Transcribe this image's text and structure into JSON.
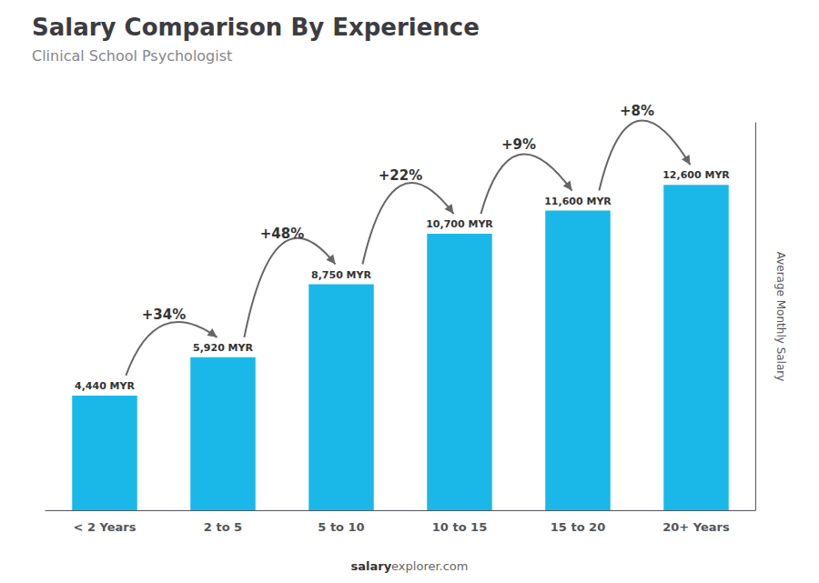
{
  "chart_data": {
    "type": "bar",
    "title": "Salary Comparison By Experience",
    "subtitle": "Clinical School Psychologist",
    "categories": [
      "< 2 Years",
      "2 to 5",
      "5 to 10",
      "10 to 15",
      "15 to 20",
      "20+ Years"
    ],
    "values": [
      4440,
      5920,
      8750,
      10700,
      11600,
      12600
    ],
    "value_labels": [
      "4,440 MYR",
      "5,920 MYR",
      "8,750 MYR",
      "10,700 MYR",
      "11,600 MYR",
      "12,600 MYR"
    ],
    "color": "#1ab8e8",
    "ylabel": "Average Monthly Salary",
    "ylim": [
      0,
      15000
    ],
    "annotations": [
      "+34%",
      "+48%",
      "+22%",
      "+9%",
      "+8%"
    ],
    "footer": [
      "salary",
      "explorer.com"
    ],
    "grid": false,
    "data_labels": true,
    "tick_labels": "x"
  }
}
